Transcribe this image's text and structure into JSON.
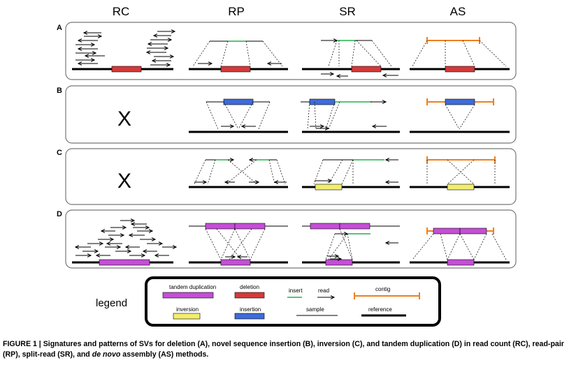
{
  "columns": [
    "RC",
    "RP",
    "SR",
    "AS"
  ],
  "rows": [
    {
      "label": "A"
    },
    {
      "label": "B",
      "rc_mark": "X"
    },
    {
      "label": "C",
      "rc_mark": "X"
    },
    {
      "label": "D"
    }
  ],
  "legend": {
    "title": "legend",
    "items": {
      "tandem_duplication": "tandem duplication",
      "deletion": "deletion",
      "insert": "insert",
      "read": "read",
      "contig": "contig",
      "inversion": "inversion",
      "insertion": "insertion",
      "sample": "sample",
      "reference": "reference"
    }
  },
  "caption": {
    "lead": "FIGURE 1 | Signatures and patterns of SVs for deletion (A), novel sequence insertion (B), inversion (C), and tandem duplication (D) in read count (RC), read-pair (RP), split-read (SR), and ",
    "italic": "de novo",
    "tail": " assembly (AS) methods."
  },
  "colors": {
    "tandem_duplication": "#c44fd6",
    "deletion": "#d6393a",
    "insert": "#22b14c",
    "contig": "#f07f1e",
    "inversion": "#f2ee6c",
    "insertion": "#3f6bd9"
  }
}
